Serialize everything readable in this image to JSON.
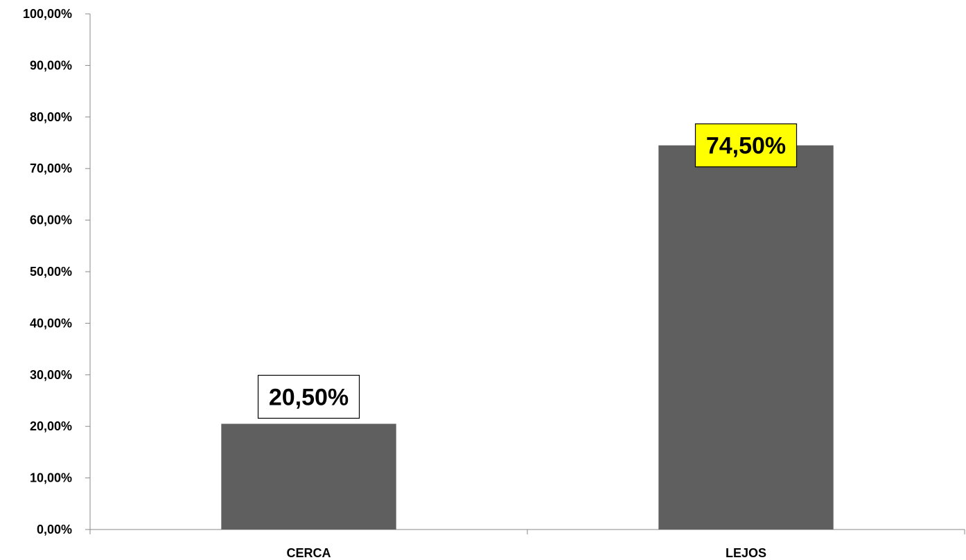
{
  "chart_data": {
    "type": "bar",
    "categories": [
      "CERCA",
      "LEJOS"
    ],
    "values": [
      20.5,
      74.5
    ],
    "data_labels": [
      "20,50%",
      "74,50%"
    ],
    "ylim": [
      0,
      100
    ],
    "y_ticks": [
      0,
      10,
      20,
      30,
      40,
      50,
      60,
      70,
      80,
      90,
      100
    ],
    "y_tick_labels": [
      "0,00%",
      "10,00%",
      "20,00%",
      "30,00%",
      "40,00%",
      "50,00%",
      "60,00%",
      "70,00%",
      "80,00%",
      "90,00%",
      "100,00%"
    ],
    "grid": false,
    "bar_color": "#5f5f5f",
    "label_backgrounds": [
      "#ffffff",
      "#ffff00"
    ]
  }
}
